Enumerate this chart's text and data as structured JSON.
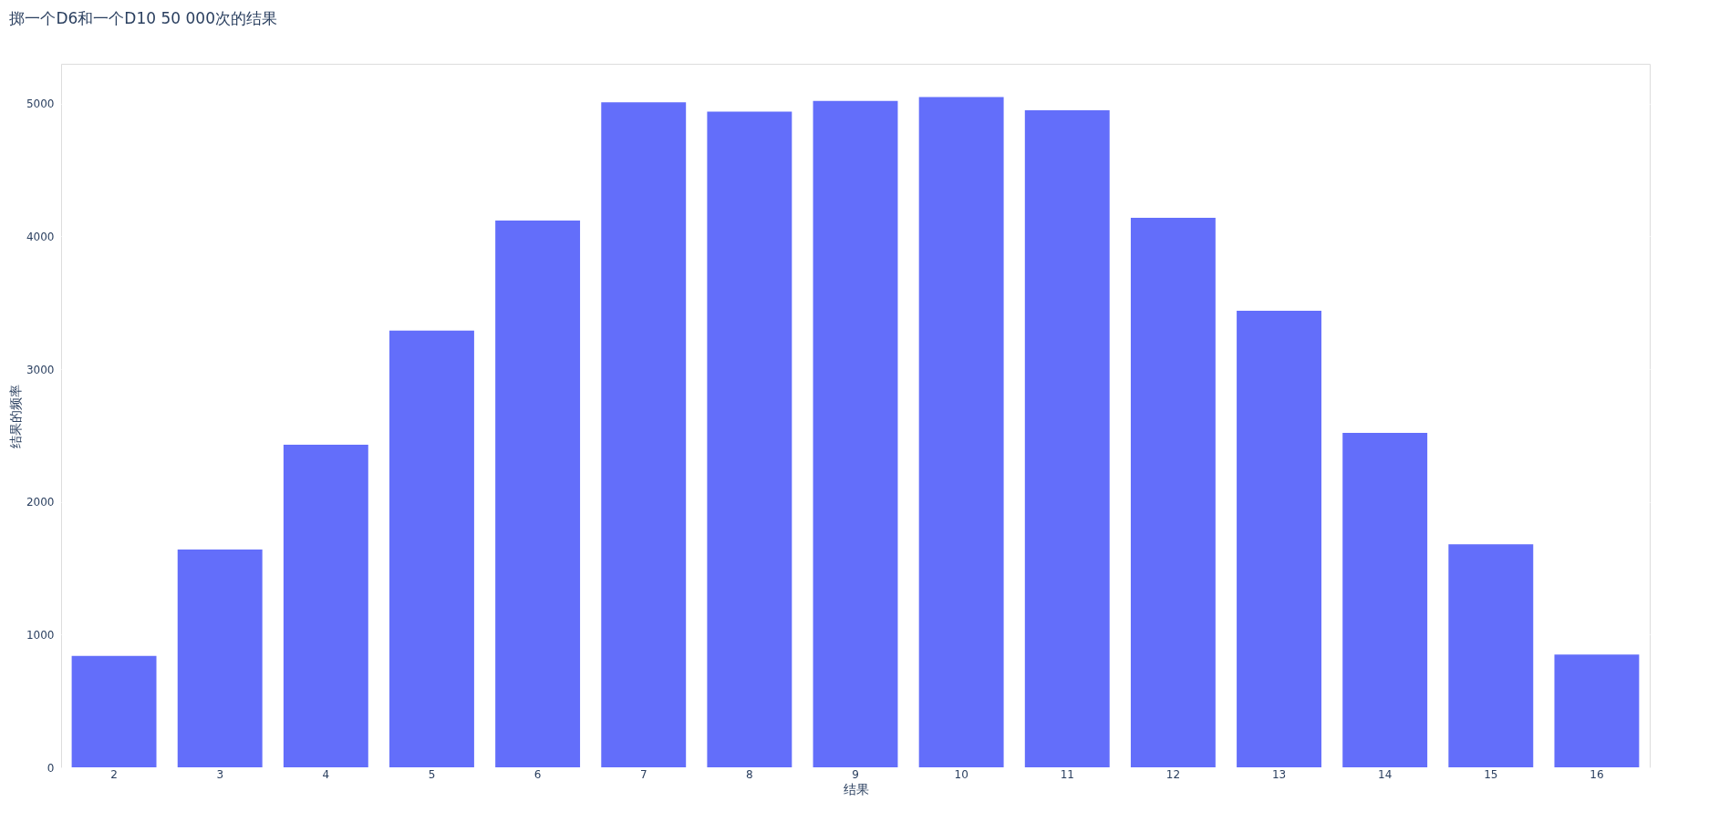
{
  "chart_data": {
    "type": "bar",
    "title": "掷一个D6和一个D10 50 000次的结果",
    "xlabel": "结果",
    "ylabel": "结果的频率",
    "categories": [
      "2",
      "3",
      "4",
      "5",
      "6",
      "7",
      "8",
      "9",
      "10",
      "11",
      "12",
      "13",
      "14",
      "15",
      "16"
    ],
    "values": [
      840,
      1640,
      2430,
      3290,
      4120,
      5010,
      4940,
      5020,
      5050,
      4950,
      4140,
      3440,
      2520,
      1680,
      850
    ],
    "color": "#636efa",
    "ylim": [
      0,
      5300
    ],
    "yticks": [
      0,
      1000,
      2000,
      3000,
      4000,
      5000
    ],
    "grid": "y"
  }
}
